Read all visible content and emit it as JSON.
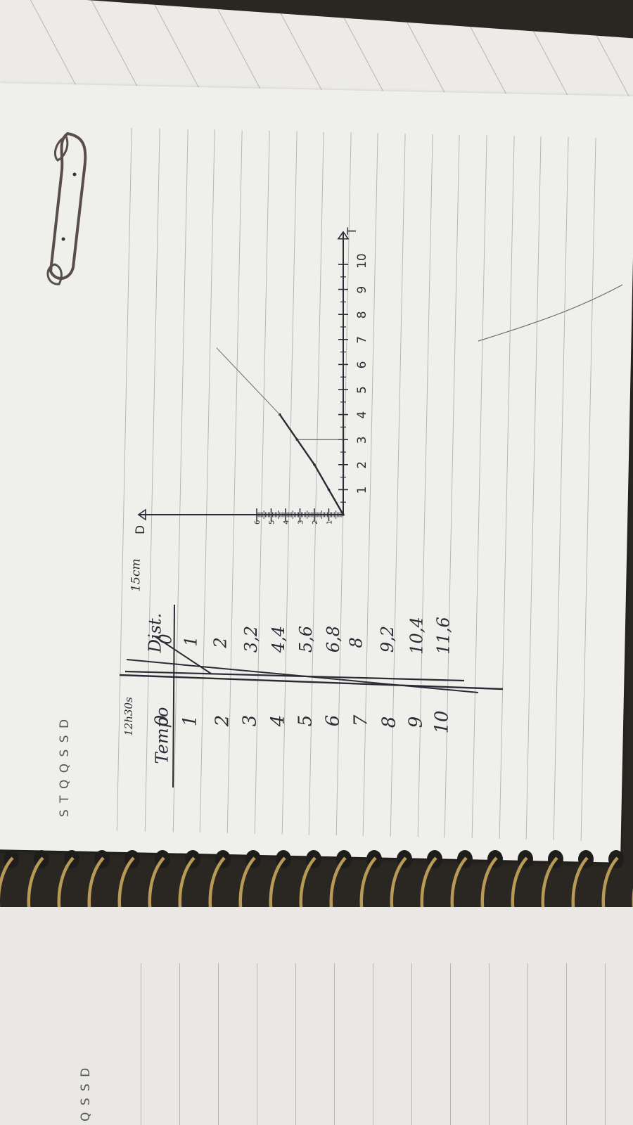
{
  "header": {
    "weekday_letters": "S  T  Q  Q  S  S  D",
    "weekday_letters_lower": "Q  S  S  D"
  },
  "table": {
    "corner_note": "12h30s",
    "time_header": "Tempo",
    "dist_header": "Dist.",
    "dist_note": "15cm",
    "time_values": [
      "0",
      "1",
      "2",
      "3",
      "4",
      "5",
      "6",
      "7",
      "8",
      "9",
      "10"
    ],
    "dist_values": [
      "0",
      "1",
      "2",
      "3,2",
      "4,4",
      "5,6",
      "6,8",
      "8",
      "9,2",
      "10,4",
      "11,6"
    ]
  },
  "chart_data": {
    "type": "line",
    "x_axis_label": "T",
    "y_axis_label": "D",
    "x_ticks": [
      "1",
      "2",
      "3",
      "4",
      "5",
      "6",
      "7",
      "8",
      "9",
      "10"
    ],
    "y_ticks": [
      "1",
      "2",
      "3",
      "4",
      "5",
      "6"
    ],
    "x": [
      0,
      1,
      2,
      3,
      4
    ],
    "y": [
      0,
      1,
      2,
      3.2,
      4.4
    ],
    "xlim": [
      0,
      11
    ],
    "ylim": [
      0,
      6.5
    ]
  },
  "colors": {
    "page": "#efefec",
    "ink": "#2b2b35",
    "rule": "#b8b6b1",
    "spiral": "#b89a56"
  }
}
